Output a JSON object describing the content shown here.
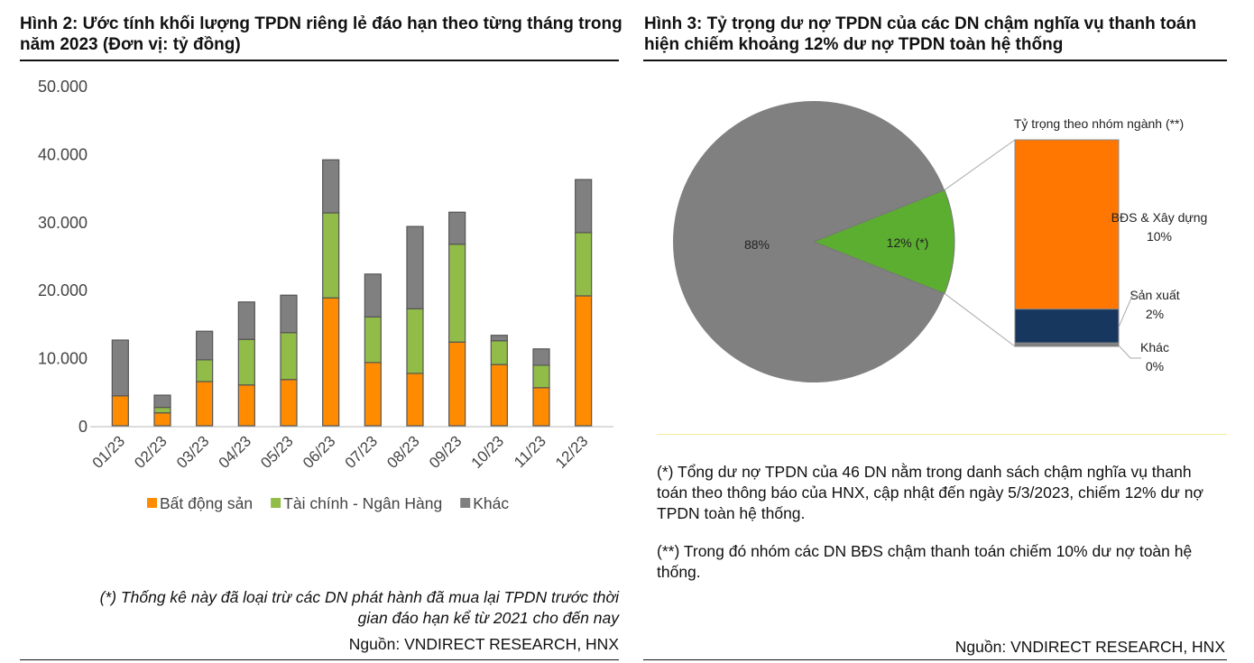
{
  "left": {
    "title": "Hình 2: Ước tính khối lượng TPDN riêng lẻ đáo hạn theo từng tháng trong năm 2023 (Đơn vị: tỷ đồng)",
    "footnote_line1": "(*) Thống kê này đã loại trừ các DN phát hành đã mua lại TPDN trước thời",
    "footnote_line2": "gian đáo hạn kể từ 2021 cho đến nay",
    "source": "Nguồn: VNDIRECT RESEARCH, HNX"
  },
  "right": {
    "title": "Hình 3: Tỷ trọng dư nợ TPDN của các DN chậm nghĩa vụ thanh toán hiện chiếm khoảng 12% dư nợ TPDN toàn hệ thống",
    "note1": "(*) Tổng dư nợ TPDN của 46 DN nằm trong danh sách chậm nghĩa vụ thanh toán theo thông báo của HNX, cập nhật đến ngày 5/3/2023, chiếm 12% dư nợ TPDN toàn hệ thống.",
    "note2": "(**) Trong đó nhóm các DN BĐS chậm thanh toán chiếm 10% dư nợ toàn hệ thống.",
    "source": "Nguồn: VNDIRECT RESEARCH, HNX"
  },
  "chart_data": [
    {
      "type": "bar",
      "stacked": true,
      "categories": [
        "01/23",
        "02/23",
        "03/23",
        "04/23",
        "05/23",
        "06/23",
        "07/23",
        "08/23",
        "09/23",
        "10/23",
        "11/23",
        "12/23"
      ],
      "series": [
        {
          "name": "Bất động sản",
          "color": "#FF8C00",
          "values": [
            4400,
            1900,
            6500,
            6000,
            6800,
            18800,
            9300,
            7700,
            12300,
            9000,
            5600,
            19100
          ]
        },
        {
          "name": "Tài chính - Ngân Hàng",
          "color": "#92BC48",
          "values": [
            0,
            800,
            3200,
            6700,
            6900,
            12500,
            6700,
            9500,
            14400,
            3500,
            3300,
            9300
          ]
        },
        {
          "name": "Khác",
          "color": "#808080",
          "values": [
            8200,
            1800,
            4200,
            5500,
            5500,
            7800,
            6300,
            12100,
            4700,
            800,
            2400,
            7800
          ]
        }
      ],
      "ylim": [
        0,
        50000
      ],
      "yticks": [
        "0",
        "10.000",
        "20.000",
        "30.000",
        "40.000",
        "50.000"
      ],
      "legend": "bottom",
      "grid": false
    },
    {
      "type": "pie",
      "slices": [
        {
          "label": "88%",
          "value": 88,
          "color": "#808080"
        },
        {
          "label": "12% (*)",
          "value": 12,
          "color": "#5CAE30"
        }
      ],
      "breakdown": {
        "title": "Tỷ trọng theo nhóm ngành (**)",
        "segments": [
          {
            "name": "BĐS & Xây dựng",
            "label": "10%",
            "value": 10,
            "color": "#FF7700"
          },
          {
            "name": "Sản xuất",
            "label": "2%",
            "value": 2,
            "color": "#17375E"
          },
          {
            "name": "Khác",
            "label": "0%",
            "value": 0.2,
            "color": "#808080"
          }
        ]
      }
    }
  ]
}
